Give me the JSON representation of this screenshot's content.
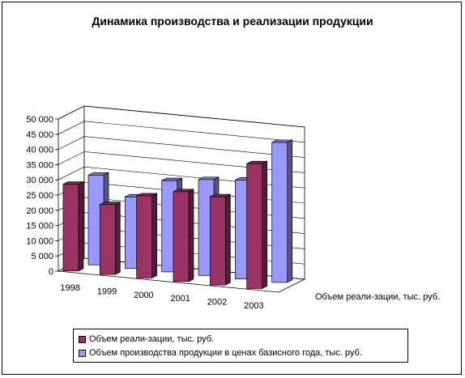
{
  "chart_data": {
    "type": "bar",
    "title": "Динамика производства и реализации продукции",
    "categories": [
      "1998",
      "1999",
      "2000",
      "2001",
      "2002",
      "2003"
    ],
    "y_ticks": [
      "0",
      "5 000",
      "10 000",
      "15 000",
      "20 000",
      "25 000",
      "30 000",
      "35 000",
      "40 000",
      "45 000",
      "50 000"
    ],
    "ylim": [
      0,
      50000
    ],
    "grid": true,
    "legend_position": "bottom",
    "series_axis_label": "Объем реали-зации, тыс. руб.",
    "series": [
      {
        "name": "Объем реали-зации, тыс. руб.",
        "color": "#993366",
        "values": [
          28500,
          23000,
          27000,
          29500,
          29000,
          41000
        ]
      },
      {
        "name": "Объем производства продукции в ценах базисного года, тыс. руб.",
        "color": "#9999ff",
        "values": [
          29500,
          23500,
          30000,
          31500,
          32500,
          46000
        ]
      }
    ]
  }
}
